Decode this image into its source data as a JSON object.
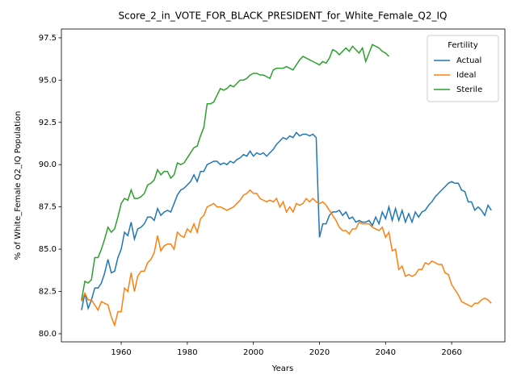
{
  "chart_data": {
    "type": "line",
    "title": "Score_2_in_VOTE_FOR_BLACK_PRESIDENT_for_White_Female_Q2_IQ",
    "xlabel": "Years",
    "ylabel": "% of White_Female Q2_IQ Population",
    "legend_title": "Fertility",
    "legend_loc": "upper right",
    "grid": false,
    "xlim": [
      1941.9,
      2076.1
    ],
    "ylim": [
      79.52,
      98.02
    ],
    "xticks": [
      1960,
      1980,
      2000,
      2020,
      2040,
      2060
    ],
    "yticks": [
      {
        "value": 80,
        "label": "80.0"
      },
      82.5,
      {
        "value": 85,
        "label": "85.0"
      },
      87.5,
      {
        "value": 90,
        "label": "90.0"
      },
      92.5,
      {
        "value": 95,
        "label": "95.0"
      },
      97.5
    ],
    "x": [
      1948,
      1949,
      1950,
      1951,
      1952,
      1953,
      1954,
      1955,
      1956,
      1957,
      1958,
      1959,
      1960,
      1961,
      1962,
      1963,
      1964,
      1965,
      1966,
      1967,
      1968,
      1969,
      1970,
      1971,
      1972,
      1973,
      1974,
      1975,
      1976,
      1977,
      1978,
      1979,
      1980,
      1981,
      1982,
      1983,
      1984,
      1985,
      1986,
      1987,
      1988,
      1989,
      1990,
      1991,
      1992,
      1993,
      1994,
      1995,
      1996,
      1997,
      1998,
      1999,
      2000,
      2001,
      2002,
      2003,
      2004,
      2005,
      2006,
      2007,
      2008,
      2009,
      2010,
      2011,
      2012,
      2013,
      2014,
      2015,
      2016,
      2017,
      2018,
      2019,
      2020,
      2021,
      2022,
      2023,
      2024,
      2025,
      2026,
      2027,
      2028,
      2029,
      2030,
      2031,
      2032,
      2033,
      2034,
      2035,
      2036,
      2037,
      2038,
      2039,
      2040,
      2041,
      2042,
      2043,
      2044,
      2045,
      2046,
      2047,
      2048,
      2049,
      2050,
      2051,
      2052,
      2053,
      2054,
      2055,
      2056,
      2057,
      2058,
      2059,
      2060,
      2061,
      2062,
      2063,
      2064,
      2065,
      2066,
      2067,
      2068,
      2069,
      2070,
      2071,
      2072
    ],
    "series": [
      {
        "name": "Actual",
        "color": "#1f77b4",
        "values": [
          81.4,
          82.4,
          81.5,
          82.0,
          82.7,
          82.7,
          83.0,
          83.6,
          84.4,
          83.6,
          83.7,
          84.5,
          85.0,
          86.0,
          85.8,
          86.6,
          85.6,
          86.2,
          86.3,
          86.5,
          86.9,
          86.9,
          86.7,
          87.4,
          87.0,
          87.2,
          87.3,
          87.2,
          87.7,
          88.2,
          88.5,
          88.6,
          88.8,
          89.0,
          89.4,
          89.0,
          89.6,
          89.6,
          90.0,
          90.1,
          90.2,
          90.2,
          90.0,
          90.1,
          90.0,
          90.2,
          90.1,
          90.3,
          90.4,
          90.6,
          90.5,
          90.8,
          90.5,
          90.7,
          90.6,
          90.7,
          90.5,
          90.7,
          90.9,
          91.2,
          91.4,
          91.6,
          91.5,
          91.7,
          91.6,
          91.9,
          91.7,
          91.8,
          91.8,
          91.7,
          91.8,
          91.6,
          85.7,
          86.5,
          86.5,
          87.0,
          87.2,
          87.2,
          87.3,
          87.0,
          87.2,
          86.8,
          86.9,
          86.6,
          86.7,
          86.6,
          86.6,
          86.7,
          86.4,
          86.9,
          86.5,
          87.2,
          86.8,
          87.5,
          86.7,
          87.4,
          86.7,
          87.3,
          86.6,
          87.1,
          86.6,
          87.2,
          86.9,
          87.2,
          87.3,
          87.6,
          87.8,
          88.1,
          88.3,
          88.5,
          88.7,
          88.9,
          89.0,
          88.9,
          88.9,
          88.5,
          88.4,
          87.8,
          87.8,
          87.3,
          87.5,
          87.3,
          87.0,
          87.6,
          87.3
        ]
      },
      {
        "name": "Ideal",
        "color": "#ff7f0e",
        "values": [
          81.9,
          82.4,
          82.0,
          82.0,
          81.7,
          81.4,
          81.9,
          81.8,
          81.7,
          81.0,
          80.5,
          81.3,
          81.3,
          82.7,
          82.5,
          83.6,
          82.5,
          83.4,
          83.7,
          83.7,
          84.2,
          84.4,
          84.8,
          85.8,
          84.9,
          85.2,
          85.3,
          85.3,
          85.0,
          86.0,
          85.8,
          85.7,
          86.2,
          86.0,
          86.5,
          86.0,
          86.8,
          87.0,
          87.5,
          87.6,
          87.7,
          87.5,
          87.5,
          87.4,
          87.3,
          87.4,
          87.5,
          87.7,
          87.9,
          88.2,
          88.3,
          88.5,
          88.3,
          88.3,
          88.0,
          87.9,
          87.8,
          87.9,
          87.8,
          88.0,
          87.5,
          87.8,
          87.2,
          87.5,
          87.2,
          87.7,
          87.6,
          87.7,
          88.0,
          87.8,
          88.0,
          87.8,
          87.7,
          87.8,
          87.6,
          87.3,
          87.0,
          86.7,
          86.3,
          86.1,
          86.1,
          85.9,
          86.2,
          86.2,
          86.6,
          86.5,
          86.5,
          86.5,
          86.3,
          86.2,
          86.1,
          86.3,
          85.7,
          86.0,
          84.9,
          85.0,
          83.8,
          84.0,
          83.4,
          83.5,
          83.4,
          83.5,
          83.8,
          83.8,
          84.2,
          84.1,
          84.3,
          84.2,
          84.1,
          84.1,
          83.6,
          83.5,
          82.9,
          82.6,
          82.3,
          81.9,
          81.8,
          81.7,
          81.6,
          81.8,
          81.8,
          82.0,
          82.1,
          82.0,
          81.8
        ]
      },
      {
        "name": "Sterile",
        "color": "#2ca02c",
        "values": [
          82.0,
          83.1,
          83.0,
          83.2,
          84.5,
          84.5,
          85.0,
          85.6,
          86.3,
          86.0,
          86.2,
          86.9,
          87.7,
          88.0,
          87.9,
          88.5,
          88.0,
          88.0,
          88.1,
          88.3,
          88.8,
          88.9,
          89.1,
          89.7,
          89.4,
          89.6,
          89.6,
          89.2,
          89.4,
          90.1,
          90.0,
          90.1,
          90.4,
          90.7,
          91.0,
          91.1,
          91.7,
          92.2,
          93.6,
          93.6,
          93.7,
          94.1,
          94.5,
          94.4,
          94.5,
          94.7,
          94.6,
          94.8,
          95.0,
          95.0,
          95.1,
          95.3,
          95.4,
          95.4,
          95.3,
          95.3,
          95.2,
          95.1,
          95.6,
          95.7,
          95.7,
          95.7,
          95.8,
          95.7,
          95.6,
          95.9,
          96.2,
          96.4,
          96.3,
          96.2,
          96.1,
          96.0,
          95.9,
          96.1,
          96.0,
          96.3,
          96.8,
          96.7,
          96.5,
          96.7,
          96.9,
          96.7,
          97.0,
          96.8,
          96.6,
          96.9,
          96.1,
          96.6,
          97.1,
          97.0,
          96.9,
          96.7,
          96.6,
          96.4,
          null,
          null,
          null,
          null,
          null,
          null,
          null,
          null,
          null,
          null,
          null,
          null,
          null,
          null,
          null,
          null,
          null,
          null,
          null,
          null,
          null,
          null,
          null,
          null,
          null,
          null,
          null,
          null,
          null,
          null,
          null
        ]
      }
    ]
  }
}
